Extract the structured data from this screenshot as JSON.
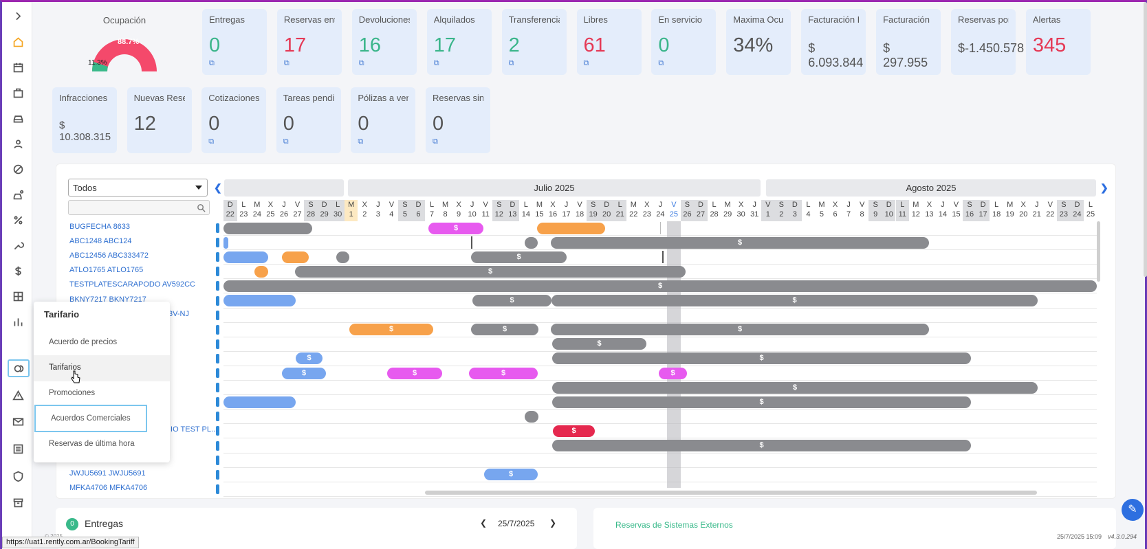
{
  "dashboard": {
    "occupancy": {
      "title": "Ocupación",
      "occupied_pct": "88.7%",
      "free_pct": "11.3%"
    },
    "cards_row1": [
      {
        "title": "Entregas",
        "value": "0",
        "color": "green",
        "ext": true
      },
      {
        "title": "Reservas entr...",
        "value": "17",
        "color": "red",
        "ext": true
      },
      {
        "title": "Devoluciones",
        "value": "16",
        "color": "green",
        "ext": true
      },
      {
        "title": "Alquilados",
        "value": "17",
        "color": "green",
        "ext": true
      },
      {
        "title": "Transferencias",
        "value": "2",
        "color": "green",
        "ext": true
      },
      {
        "title": "Libres",
        "value": "61",
        "color": "red",
        "ext": true
      },
      {
        "title": "En servicio",
        "value": "0",
        "color": "green",
        "ext": true
      },
      {
        "title": "Maxima Ocup...",
        "value": "34%",
        "color": "gray",
        "ext": false
      },
      {
        "title": "Facturación R...",
        "value": "$ 6.093.844",
        "color": "money",
        "ext": false
      },
      {
        "title": "Facturación",
        "value": "$ 297.955",
        "color": "money",
        "ext": false
      },
      {
        "title": "Reservas por ...",
        "value": "$-1.450.578",
        "color": "money",
        "ext": false
      },
      {
        "title": "Alertas",
        "value": "345",
        "color": "red",
        "ext": false
      }
    ],
    "cards_row2": [
      {
        "title": "Infracciones",
        "value": "$ 10.308.315",
        "color": "moneygreen",
        "ext": false
      },
      {
        "title": "Nuevas Reser...",
        "value": "12",
        "color": "gray",
        "ext": false
      },
      {
        "title": "Cotizaciones ...",
        "value": "0",
        "color": "gray",
        "ext": true
      },
      {
        "title": "Tareas pendie...",
        "value": "0",
        "color": "gray",
        "ext": true
      },
      {
        "title": "Pólizas a venc...",
        "value": "0",
        "color": "gray",
        "ext": true
      },
      {
        "title": "Reservas sin a...",
        "value": "0",
        "color": "gray",
        "ext": true
      }
    ]
  },
  "planner": {
    "filter_value": "Todos",
    "months": [
      "Julio 2025",
      "Agosto 2025"
    ],
    "days": [
      [
        "D",
        "22"
      ],
      [
        "L",
        "23"
      ],
      [
        "M",
        "24"
      ],
      [
        "X",
        "25"
      ],
      [
        "J",
        "26"
      ],
      [
        "V",
        "27"
      ],
      [
        "S",
        "28"
      ],
      [
        "D",
        "29"
      ],
      [
        "L",
        "30"
      ],
      [
        "M",
        "1"
      ],
      [
        "X",
        "2"
      ],
      [
        "J",
        "3"
      ],
      [
        "V",
        "4"
      ],
      [
        "S",
        "5"
      ],
      [
        "D",
        "6"
      ],
      [
        "L",
        "7"
      ],
      [
        "M",
        "8"
      ],
      [
        "X",
        "9"
      ],
      [
        "J",
        "10"
      ],
      [
        "V",
        "11"
      ],
      [
        "S",
        "12"
      ],
      [
        "D",
        "13"
      ],
      [
        "L",
        "14"
      ],
      [
        "M",
        "15"
      ],
      [
        "X",
        "16"
      ],
      [
        "J",
        "17"
      ],
      [
        "V",
        "18"
      ],
      [
        "S",
        "19"
      ],
      [
        "D",
        "20"
      ],
      [
        "L",
        "21"
      ],
      [
        "M",
        "22"
      ],
      [
        "X",
        "23"
      ],
      [
        "J",
        "24"
      ],
      [
        "V",
        "25"
      ],
      [
        "S",
        "26"
      ],
      [
        "D",
        "27"
      ],
      [
        "L",
        "28"
      ],
      [
        "M",
        "29"
      ],
      [
        "X",
        "30"
      ],
      [
        "J",
        "31"
      ],
      [
        "V",
        "1"
      ],
      [
        "S",
        "2"
      ],
      [
        "D",
        "3"
      ],
      [
        "L",
        "4"
      ],
      [
        "M",
        "5"
      ],
      [
        "X",
        "6"
      ],
      [
        "J",
        "7"
      ],
      [
        "V",
        "8"
      ],
      [
        "S",
        "9"
      ],
      [
        "D",
        "10"
      ],
      [
        "L",
        "11"
      ],
      [
        "M",
        "12"
      ],
      [
        "X",
        "13"
      ],
      [
        "J",
        "14"
      ],
      [
        "V",
        "15"
      ],
      [
        "S",
        "16"
      ],
      [
        "D",
        "17"
      ],
      [
        "L",
        "18"
      ],
      [
        "M",
        "19"
      ],
      [
        "X",
        "20"
      ],
      [
        "J",
        "21"
      ],
      [
        "V",
        "22"
      ],
      [
        "S",
        "23"
      ],
      [
        "D",
        "24"
      ],
      [
        "L",
        "25"
      ]
    ],
    "rows": [
      "BUGFECHA 8633",
      "ABC1248 ABC124",
      "ABC12456 ABC333472",
      "ATLO1765 ATLO1765",
      "TESTPLATESCARAPODO AV592CC",
      "BKNY7217 BKNY7217",
      "3V-NJ",
      "",
      "",
      "",
      "",
      "",
      "",
      "",
      "IIO TEST PL...",
      "",
      "",
      "JWJU5691 JWJU5691",
      "MFKA4706 MFKA4706"
    ],
    "bar_symbol": "$"
  },
  "flyout_menu": {
    "title": "Tarifario",
    "items": [
      "Acuerdo de precios",
      "Tarifarios",
      "Promociones",
      "Acuerdos Comerciales",
      "Reservas de última hora"
    ]
  },
  "bottom": {
    "entregas_label": "Entregas",
    "entregas_count": "0",
    "date": "25/7/2025",
    "external_label": "Reservas de Sistemas Externos"
  },
  "footer": {
    "copyright": "© 2025",
    "timestamp": "25/7/2025 15:09",
    "version": "v4.3.0.294",
    "status_url": "https://uat1.rently.com.ar/BookingTariff"
  }
}
